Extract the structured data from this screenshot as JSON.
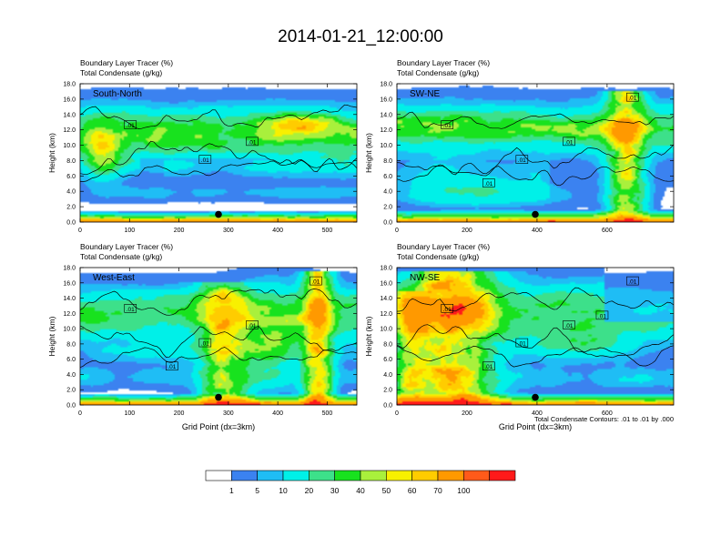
{
  "title": "2014-01-21_12:00:00",
  "footnote": "Total Condensate Contours: .01 to .01 by .000",
  "colorbar": {
    "labels": [
      "1",
      "5",
      "10",
      "20",
      "30",
      "40",
      "50",
      "60",
      "70",
      "100"
    ],
    "colors": [
      "#ffffff",
      "#3b82f0",
      "#1fbdf5",
      "#00f0e8",
      "#3de08a",
      "#18e21e",
      "#a9f03c",
      "#f8f000",
      "#ffcc00",
      "#ff9900",
      "#ff5a1a",
      "#ff1a1a"
    ]
  },
  "chart_data": [
    {
      "type": "heatmap",
      "panel_label": "South-North",
      "title_lines": [
        "Boundary Layer Tracer   (%)",
        "Total Condensate   (g/kg)"
      ],
      "ylabel": "Height (km)",
      "xlabel": "",
      "xlim": [
        0,
        560
      ],
      "ylim": [
        0,
        18
      ],
      "xticks": [
        0,
        100,
        200,
        300,
        400,
        500
      ],
      "yticks": [
        "0.0",
        "2.0",
        "4.0",
        "6.0",
        "8.0",
        "10.0",
        "12.0",
        "14.0",
        "16.0",
        "18.0"
      ],
      "contour_labels": [
        ".01",
        ".01",
        ".01"
      ],
      "marker_x": 280,
      "marker_y": 1.0
    },
    {
      "type": "heatmap",
      "panel_label": "SW-NE",
      "title_lines": [
        "Boundary Layer Tracer   (%)",
        "Total Condensate   (g/kg)"
      ],
      "ylabel": "Height (km)",
      "xlabel": "",
      "xlim": [
        0,
        790
      ],
      "ylim": [
        0,
        18
      ],
      "xticks": [
        0,
        200,
        400,
        600
      ],
      "yticks": [
        "0.0",
        "2.0",
        "4.0",
        "6.0",
        "8.0",
        "10.0",
        "12.0",
        "14.0",
        "16.0",
        "18.0"
      ],
      "contour_labels": [
        ".01",
        ".01",
        ".01",
        ".01",
        ".01"
      ],
      "marker_x": 395,
      "marker_y": 1.0
    },
    {
      "type": "heatmap",
      "panel_label": "West-East",
      "title_lines": [
        "Boundary Layer Tracer   (%)",
        "Total Condensate   (g/kg)"
      ],
      "ylabel": "Height (km)",
      "xlabel": "Grid Point (dx=3km)",
      "xlim": [
        0,
        560
      ],
      "ylim": [
        0,
        18
      ],
      "xticks": [
        0,
        100,
        200,
        300,
        400,
        500
      ],
      "yticks": [
        "0.0",
        "2.0",
        "4.0",
        "6.0",
        "8.0",
        "10.0",
        "12.0",
        "14.0",
        "16.0",
        "18.0"
      ],
      "contour_labels": [
        ".01",
        ".01",
        ".01",
        ".01",
        ".01"
      ],
      "marker_x": 280,
      "marker_y": 1.0
    },
    {
      "type": "heatmap",
      "panel_label": "NW-SE",
      "title_lines": [
        "Boundary Layer Tracer   (%)",
        "Total Condensate   (g/kg)"
      ],
      "ylabel": "Height (km)",
      "xlabel": "Grid Point (dx=3km)",
      "xlim": [
        0,
        790
      ],
      "ylim": [
        0,
        18
      ],
      "xticks": [
        0,
        200,
        400,
        600
      ],
      "yticks": [
        "0.0",
        "2.0",
        "4.0",
        "6.0",
        "8.0",
        "10.0",
        "12.0",
        "14.0",
        "16.0",
        "18.0"
      ],
      "contour_labels": [
        ".01",
        ".01",
        ".01",
        ".01",
        ".01",
        ".01"
      ],
      "marker_x": 395,
      "marker_y": 1.0
    }
  ]
}
